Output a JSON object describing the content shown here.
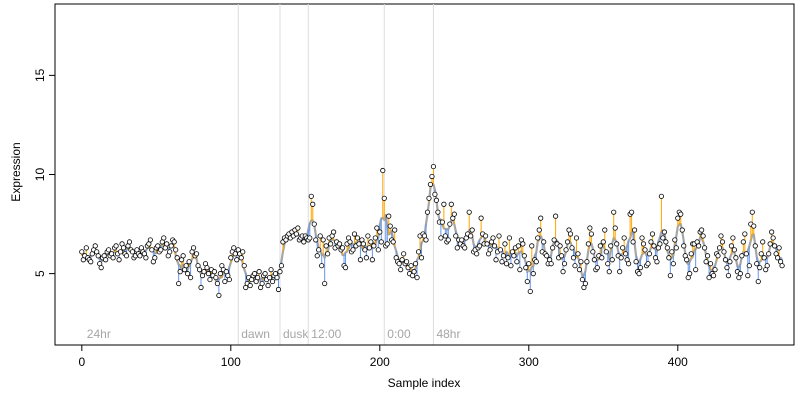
{
  "chart_data": {
    "type": "scatter",
    "title": "",
    "xlabel": "Sample index",
    "ylabel": "Expression",
    "xlim": [
      -18,
      478
    ],
    "ylim": [
      1.4,
      18.6
    ],
    "xticks": [
      0,
      100,
      200,
      300,
      400
    ],
    "yticks": [
      5,
      10,
      15
    ],
    "grid": false,
    "colors": {
      "points_fill": "#ffffff",
      "points_stroke": "#000000",
      "trend_line": "#a6a6a6",
      "residual_up": "#ffa500",
      "residual_down": "#6495ed",
      "vertical_marker": "#dcdcdc",
      "annotation_text": "#a6a6a6"
    },
    "markers": [
      {
        "x": 105,
        "label": "dawn"
      },
      {
        "x": 133,
        "label": "dusk"
      },
      {
        "x": 152,
        "label": "12:00"
      },
      {
        "x": 203,
        "label": "0:00"
      },
      {
        "x": 236,
        "label": "48hr"
      }
    ],
    "left_label": {
      "x": 2,
      "label": "24hr"
    },
    "points_y": [
      6.1,
      5.7,
      5.9,
      6.3,
      5.8,
      5.7,
      5.6,
      6.0,
      6.2,
      6.4,
      6.1,
      5.9,
      5.5,
      5.3,
      5.8,
      5.9,
      5.7,
      6.1,
      6.2,
      5.9,
      6.0,
      5.8,
      6.3,
      6.4,
      6.0,
      5.7,
      6.1,
      6.5,
      6.3,
      6.0,
      5.9,
      6.4,
      6.6,
      6.2,
      6.1,
      5.8,
      5.9,
      6.2,
      6.0,
      5.9,
      6.3,
      6.1,
      6.0,
      5.8,
      6.4,
      6.5,
      6.7,
      6.2,
      5.6,
      5.8,
      6.3,
      6.4,
      6.1,
      6.2,
      6.6,
      6.8,
      6.3,
      6.5,
      5.9,
      6.1,
      6.4,
      6.7,
      6.6,
      6.2,
      5.8,
      4.5,
      5.1,
      5.7,
      5.9,
      5.2,
      5.4,
      5.0,
      5.6,
      4.8,
      6.1,
      6.3,
      5.9,
      6.0,
      5.4,
      5.2,
      4.3,
      4.9,
      5.1,
      5.5,
      5.3,
      5.0,
      4.7,
      5.2,
      4.9,
      5.1,
      4.8,
      4.5,
      3.9,
      5.0,
      5.4,
      5.2,
      4.6,
      5.1,
      4.9,
      4.7,
      5.8,
      6.1,
      6.3,
      6.0,
      5.7,
      6.2,
      6.0,
      5.8,
      6.1,
      5.4,
      4.3,
      4.5,
      4.8,
      4.4,
      4.7,
      4.9,
      5.0,
      4.6,
      4.8,
      5.1,
      4.3,
      4.5,
      4.9,
      5.0,
      4.7,
      4.4,
      4.8,
      5.2,
      4.6,
      4.9,
      5.0,
      4.8,
      4.2,
      5.1,
      5.4,
      6.6,
      6.8,
      6.7,
      6.9,
      7.0,
      6.8,
      7.1,
      6.9,
      7.2,
      7.0,
      7.3,
      6.7,
      6.8,
      6.9,
      6.6,
      6.9,
      6.8,
      6.7,
      6.8,
      8.9,
      8.5,
      7.5,
      6.7,
      5.9,
      6.2,
      6.9,
      5.4,
      6.7,
      4.5,
      6.4,
      6.0,
      6.8,
      6.5,
      6.9,
      7.1,
      6.3,
      6.6,
      6.4,
      6.5,
      6.2,
      6.3,
      5.4,
      5.3,
      6.5,
      6.8,
      6.6,
      6.1,
      6.2,
      7.0,
      6.4,
      6.8,
      6.5,
      5.7,
      6.7,
      6.5,
      6.2,
      5.8,
      6.9,
      6.3,
      6.6,
      5.7,
      6.4,
      6.8,
      7.3,
      6.2,
      7.1,
      6.6,
      10.2,
      8.8,
      6.4,
      6.5,
      7.9,
      7.4,
      6.7,
      6.6,
      7.2,
      5.8,
      5.6,
      5.5,
      5.2,
      5.7,
      6.0,
      5.5,
      5.6,
      5.3,
      5.0,
      5.4,
      4.9,
      5.1,
      5.5,
      4.8,
      6.1,
      6.9,
      5.8,
      7.0,
      6.9,
      6.7,
      8.1,
      8.8,
      9.5,
      9.9,
      10.4,
      9.0,
      8.7,
      8.1,
      7.6,
      6.8,
      7.6,
      8.5,
      6.9,
      6.6,
      6.7,
      7.5,
      8.5,
      7.8,
      8.0,
      6.9,
      6.3,
      6.7,
      6.5,
      6.7,
      6.4,
      6.3,
      6.8,
      7.0,
      8.1,
      6.9,
      7.2,
      6.1,
      6.2,
      6.0,
      6.3,
      6.4,
      7.8,
      7.0,
      6.5,
      6.9,
      6.5,
      6.0,
      6.2,
      6.6,
      6.8,
      6.4,
      5.7,
      6.1,
      6.9,
      6.2,
      5.6,
      5.9,
      6.5,
      5.5,
      5.8,
      6.8,
      5.4,
      6.1,
      5.9,
      6.3,
      5.6,
      6.4,
      5.2,
      6.7,
      6.5,
      5.9,
      5.3,
      4.6,
      5.5,
      4.1,
      6.4,
      5.0,
      5.7,
      5.6,
      6.8,
      7.2,
      7.8,
      6.1,
      6.6,
      6.0,
      5.9,
      5.5,
      5.7,
      5.5,
      6.3,
      6.7,
      7.9,
      6.5,
      5.8,
      6.4,
      5.9,
      5.1,
      5.5,
      6.2,
      6.6,
      7.2,
      7.0,
      6.3,
      5.8,
      5.4,
      6.8,
      6.0,
      5.2,
      5.6,
      4.7,
      4.3,
      4.5,
      5.6,
      6.5,
      7.3,
      7.0,
      6.1,
      5.7,
      5.2,
      5.3,
      5.9,
      6.4,
      5.8,
      6.6,
      7.2,
      6.1,
      5.5,
      5.1,
      6.4,
      5.7,
      8.1,
      7.3,
      6.5,
      5.9,
      5.1,
      5.8,
      6.3,
      6.8,
      6.0,
      5.7,
      5.5,
      8.0,
      8.1,
      6.6,
      7.2,
      5.6,
      5.1,
      5.0,
      5.3,
      6.8,
      6.5,
      6.2,
      5.4,
      5.5,
      6.0,
      6.6,
      7.0,
      6.4,
      5.8,
      5.6,
      6.3,
      6.5,
      8.9,
      6.8,
      7.1,
      6.6,
      6.3,
      5.8,
      4.9,
      6.1,
      5.5,
      6.7,
      6.3,
      7.8,
      8.1,
      8.0,
      7.2,
      6.4,
      5.9,
      5.7,
      4.8,
      5.0,
      6.0,
      6.5,
      6.5,
      5.2,
      6.6,
      6.4,
      7.1,
      7.2,
      6.9,
      6.3,
      5.6,
      5.9,
      4.8,
      5.5,
      5.0,
      4.9,
      5.2,
      6.0,
      5.9,
      6.3,
      6.9,
      6.6,
      6.1,
      5.7,
      5.3,
      4.9,
      5.6,
      6.4,
      6.8,
      6.2,
      5.8,
      5.1,
      4.8,
      5.0,
      5.9,
      6.6,
      7.0,
      6.0,
      4.9,
      5.4,
      7.5,
      8.1,
      7.4,
      6.4,
      5.5,
      4.6,
      5.3,
      6.0,
      6.6,
      5.8,
      5.2,
      5.4,
      6.0,
      6.5,
      7.1,
      6.8,
      6.4,
      6.0,
      5.8,
      6.3,
      5.6,
      5.4
    ]
  }
}
